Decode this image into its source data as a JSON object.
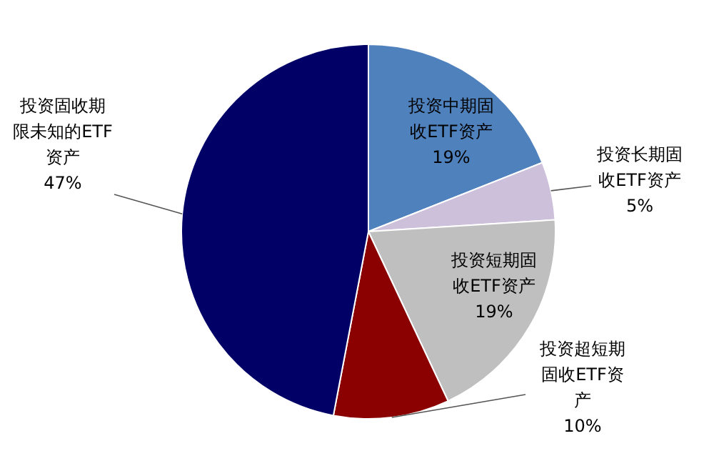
{
  "chart_data": {
    "type": "pie",
    "categories": [
      "投资中期固收ETF资产",
      "投资长期固收ETF资产",
      "投资短期固收ETF资产",
      "投资超短期固收ETF资产",
      "投资固收期限未知的ETF资产"
    ],
    "values": [
      19,
      5,
      19,
      10,
      47
    ],
    "colors": [
      "#4f81bd",
      "#ccc0da",
      "#bfbfbf",
      "#8b0000",
      "#000066"
    ],
    "value_labels": [
      "19%",
      "5%",
      "19%",
      "10%",
      "47%"
    ],
    "legend": false
  }
}
